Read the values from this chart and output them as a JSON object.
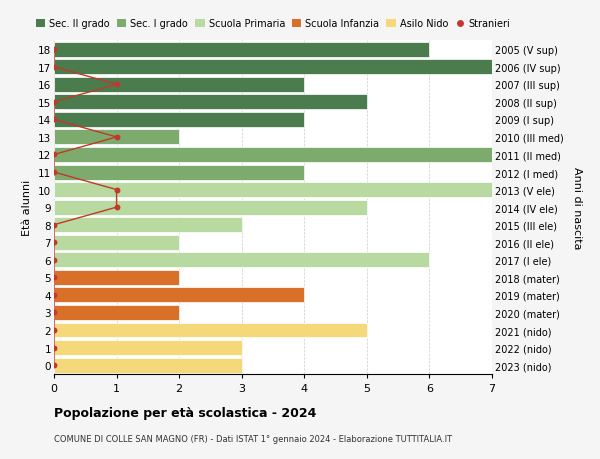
{
  "ages": [
    18,
    17,
    16,
    15,
    14,
    13,
    12,
    11,
    10,
    9,
    8,
    7,
    6,
    5,
    4,
    3,
    2,
    1,
    0
  ],
  "year_labels": [
    "2005 (V sup)",
    "2006 (IV sup)",
    "2007 (III sup)",
    "2008 (II sup)",
    "2009 (I sup)",
    "2010 (III med)",
    "2011 (II med)",
    "2012 (I med)",
    "2013 (V ele)",
    "2014 (IV ele)",
    "2015 (III ele)",
    "2016 (II ele)",
    "2017 (I ele)",
    "2018 (mater)",
    "2019 (mater)",
    "2020 (mater)",
    "2021 (nido)",
    "2022 (nido)",
    "2023 (nido)"
  ],
  "bar_values": [
    6,
    7,
    4,
    5,
    4,
    2,
    7,
    4,
    7,
    5,
    3,
    2,
    6,
    2,
    4,
    2,
    5,
    3,
    3
  ],
  "bar_colors": [
    "#4a7c4e",
    "#4a7c4e",
    "#4a7c4e",
    "#4a7c4e",
    "#4a7c4e",
    "#7dab6e",
    "#7dab6e",
    "#7dab6e",
    "#b8d9a0",
    "#b8d9a0",
    "#b8d9a0",
    "#b8d9a0",
    "#b8d9a0",
    "#d9702a",
    "#d9702a",
    "#d9702a",
    "#f5d87a",
    "#f5d87a",
    "#f5d87a"
  ],
  "stranieri_values": [
    0,
    0,
    1,
    0,
    0,
    1,
    0,
    0,
    1,
    1,
    0,
    0,
    0,
    0,
    0,
    0,
    0,
    0,
    0
  ],
  "stranieri_color": "#c0392b",
  "legend_labels": [
    "Sec. II grado",
    "Sec. I grado",
    "Scuola Primaria",
    "Scuola Infanzia",
    "Asilo Nido",
    "Stranieri"
  ],
  "legend_colors": [
    "#4a7c4e",
    "#7dab6e",
    "#b8d9a0",
    "#d9702a",
    "#f5d87a",
    "#c0392b"
  ],
  "ylabel_left": "Età alunni",
  "ylabel_right": "Anni di nascita",
  "xlim": [
    0,
    7
  ],
  "xticks": [
    0,
    1,
    2,
    3,
    4,
    5,
    6,
    7
  ],
  "title": "Popolazione per età scolastica - 2024",
  "subtitle": "COMUNE DI COLLE SAN MAGNO (FR) - Dati ISTAT 1° gennaio 2024 - Elaborazione TUTTITALIA.IT",
  "background_color": "#f5f5f5",
  "plot_bg_color": "#ffffff"
}
